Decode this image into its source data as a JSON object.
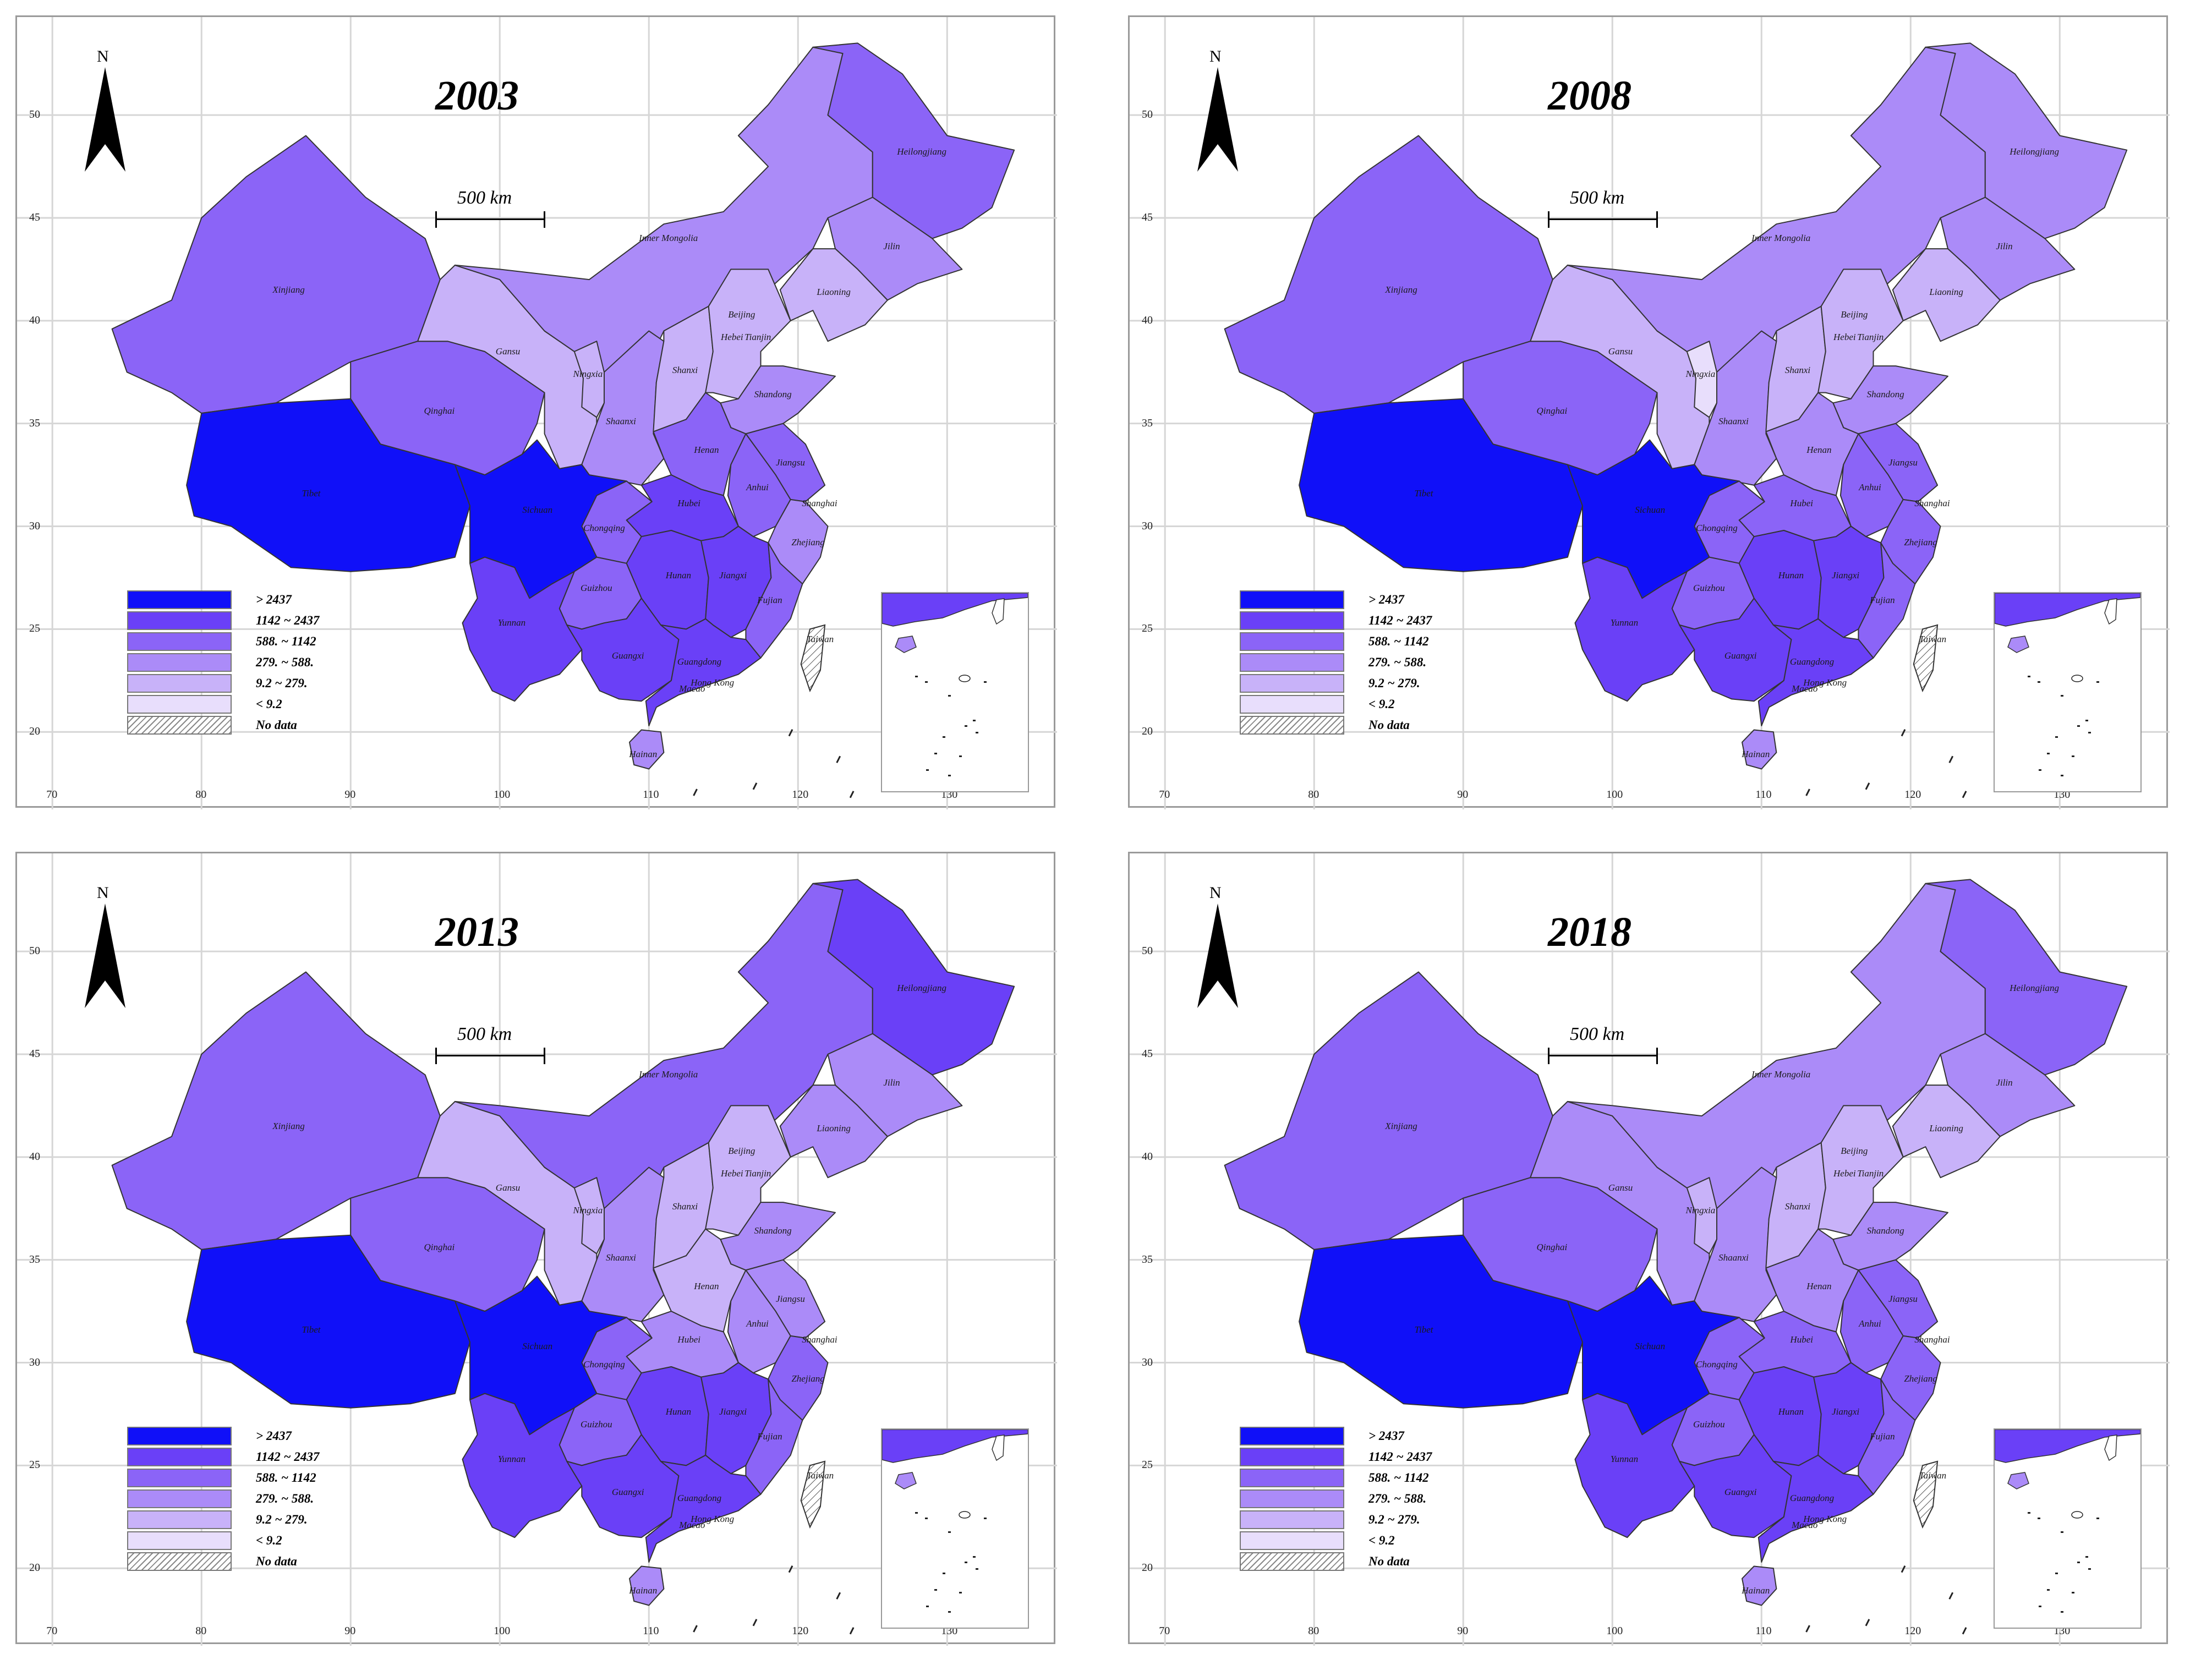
{
  "x_ticks": [
    "70",
    "80",
    "90",
    "100",
    "110",
    "120",
    "130"
  ],
  "y_ticks": [
    "50",
    "45",
    "40",
    "35",
    "30",
    "25",
    "20"
  ],
  "north_label": "N",
  "scale_bar_label": "500 km",
  "legend": [
    {
      "label": "> 2437",
      "color": "#1010f8"
    },
    {
      "label": "1142 ~ 2437",
      "color": "#6a40f7"
    },
    {
      "label": "588. ~ 1142",
      "color": "#8b64f7"
    },
    {
      "label": "279. ~ 588.",
      "color": "#ab8bf8"
    },
    {
      "label": "9.2 ~ 279.",
      "color": "#c8b2f9"
    },
    {
      "label": "< 9.2",
      "color": "#e8defc"
    },
    {
      "label": "No data",
      "color": "hatched"
    }
  ],
  "province_labels": [
    "Heilongjiang",
    "Inner Mongolia",
    "Jilin",
    "Liaoning",
    "Xinjiang",
    "Beijing",
    "Hebei",
    "Tianjin",
    "Gansu",
    "Ningxia",
    "Shanxi",
    "Shandong",
    "Qinghai",
    "Shaanxi",
    "Henan",
    "Jiangsu",
    "Tibet",
    "Sichuan",
    "Hubei",
    "Anhui",
    "Shanghai",
    "Chongqing",
    "Zhejiang",
    "Hunan",
    "Jiangxi",
    "Guizhou",
    "Fujian",
    "Yunnan",
    "Taiwan",
    "Guangxi",
    "Guangdong",
    "Hong Kong",
    "Macao",
    "Hainan"
  ],
  "panels": [
    {
      "year": "2003",
      "classes": {
        "xinjiang": 2,
        "tibet": 0,
        "qinghai": 2,
        "sichuan": 0,
        "innermongolia": 3,
        "heilongjiang": 2,
        "jilin": 3,
        "liaoning": 4,
        "gansu": 4,
        "ningxia": 4,
        "shaanxi": 3,
        "shanxi": 4,
        "hebei": 4,
        "shandong": 3,
        "henan": 2,
        "hubei": 1,
        "hunan": 1,
        "jiangxi": 1,
        "guangdong": 1,
        "guangxi": 1,
        "yunnan": 1,
        "guizhou": 2,
        "chongqing": 2,
        "anhui": 2,
        "jiangsu": 2,
        "zhejiang": 3,
        "fujian": 2,
        "hainan": 3
      }
    },
    {
      "year": "2008",
      "classes": {
        "xinjiang": 2,
        "tibet": 0,
        "qinghai": 2,
        "sichuan": 0,
        "innermongolia": 3,
        "heilongjiang": 3,
        "jilin": 3,
        "liaoning": 4,
        "gansu": 4,
        "ningxia": 5,
        "shaanxi": 3,
        "shanxi": 4,
        "hebei": 4,
        "shandong": 3,
        "henan": 3,
        "hubei": 2,
        "hunan": 1,
        "jiangxi": 1,
        "guangdong": 1,
        "guangxi": 1,
        "yunnan": 1,
        "guizhou": 2,
        "chongqing": 2,
        "anhui": 2,
        "jiangsu": 2,
        "zhejiang": 2,
        "fujian": 2,
        "hainan": 3
      }
    },
    {
      "year": "2013",
      "classes": {
        "xinjiang": 2,
        "tibet": 0,
        "qinghai": 2,
        "sichuan": 0,
        "innermongolia": 2,
        "heilongjiang": 1,
        "jilin": 3,
        "liaoning": 3,
        "gansu": 4,
        "ningxia": 4,
        "shaanxi": 3,
        "shanxi": 4,
        "hebei": 4,
        "shandong": 3,
        "henan": 4,
        "hubei": 3,
        "hunan": 1,
        "jiangxi": 1,
        "guangdong": 1,
        "guangxi": 1,
        "yunnan": 1,
        "guizhou": 2,
        "chongqing": 2,
        "anhui": 3,
        "jiangsu": 3,
        "zhejiang": 2,
        "fujian": 2,
        "hainan": 3
      }
    },
    {
      "year": "2018",
      "classes": {
        "xinjiang": 2,
        "tibet": 0,
        "qinghai": 2,
        "sichuan": 0,
        "innermongolia": 3,
        "heilongjiang": 2,
        "jilin": 3,
        "liaoning": 4,
        "gansu": 3,
        "ningxia": 4,
        "shaanxi": 3,
        "shanxi": 4,
        "hebei": 4,
        "shandong": 3,
        "henan": 3,
        "hubei": 2,
        "hunan": 1,
        "jiangxi": 1,
        "guangdong": 1,
        "guangxi": 1,
        "yunnan": 1,
        "guizhou": 2,
        "chongqing": 2,
        "anhui": 2,
        "jiangsu": 2,
        "zhejiang": 2,
        "fujian": 2,
        "hainan": 3
      }
    }
  ]
}
